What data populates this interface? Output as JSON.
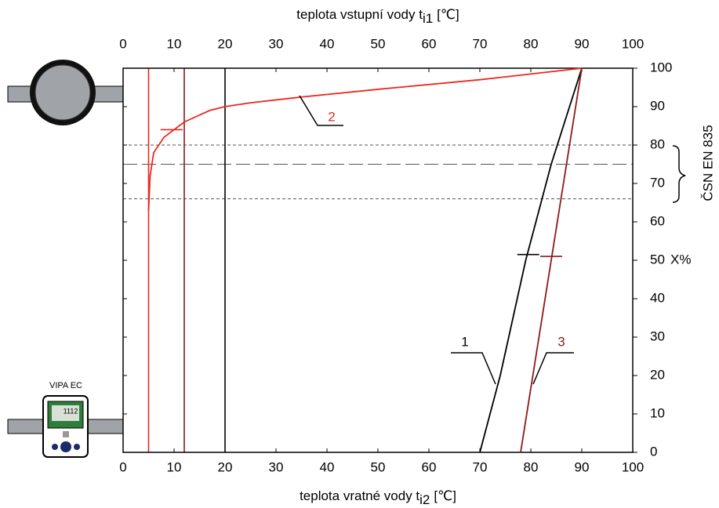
{
  "chart_data": {
    "type": "line",
    "x_label_top": {
      "text": "teplota vstupní vody t",
      "sub": "i1",
      "unit": "[℃]"
    },
    "x_label_bottom": {
      "text": "teplota vratné vody t",
      "sub": "i2",
      "unit": "[℃]"
    },
    "y_label": "X%",
    "annotation": "ČSN EN 835",
    "device_label": "VIPA EC",
    "device_display": "1112",
    "xlim": [
      0,
      100
    ],
    "xticks": [
      0,
      10,
      20,
      30,
      40,
      50,
      60,
      70,
      80,
      90,
      100
    ],
    "x2lim": [
      0,
      100
    ],
    "x2ticks": [
      0,
      10,
      20,
      30,
      40,
      50,
      60,
      70,
      80,
      90,
      100
    ],
    "ylim": [
      0,
      100
    ],
    "yticks": [
      0,
      10,
      20,
      30,
      40,
      50,
      60,
      70,
      80,
      90,
      100
    ],
    "series": [
      {
        "name": "1",
        "color": "#000000",
        "x": [
          70,
          74,
          79,
          84,
          90
        ],
        "values": [
          0,
          20,
          50,
          75,
          100
        ]
      },
      {
        "name": "2",
        "color": "#e8281e",
        "x": [
          5,
          5.3,
          6,
          8,
          12,
          17,
          20,
          25,
          35,
          50,
          70,
          90
        ],
        "values": [
          63,
          72,
          78,
          82,
          86,
          89,
          90,
          91,
          92.5,
          94.5,
          97,
          100
        ]
      },
      {
        "name": "3",
        "color": "#8b1a1a",
        "x": [
          78,
          81,
          84,
          87,
          90
        ],
        "values": [
          0,
          25,
          50,
          75,
          100
        ]
      }
    ],
    "vlines": [
      {
        "x": 5,
        "color": "#e8281e"
      },
      {
        "x": 12,
        "color": "#8b1a1a"
      },
      {
        "x": 20,
        "color": "#000000"
      }
    ],
    "hlines": [
      {
        "y": 66,
        "dash": "4 3"
      },
      {
        "y": 75,
        "dash": "18 6"
      },
      {
        "y": 80,
        "dash": "4 3"
      }
    ],
    "markers": [
      {
        "x": 9.5,
        "y": 84,
        "color": "#e8281e"
      },
      {
        "x": 79.5,
        "y": 51.5,
        "color": "#000000"
      },
      {
        "x": 84,
        "y": 51,
        "color": "#8b1a1a"
      }
    ]
  }
}
